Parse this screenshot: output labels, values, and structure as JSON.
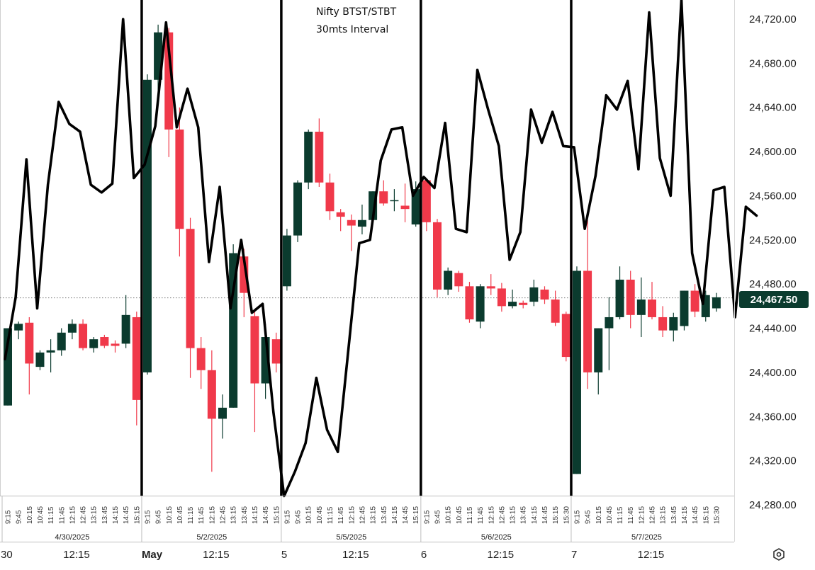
{
  "chart_title": [
    "Nifty BTST/STBT",
    "30mts Interval"
  ],
  "current_price_label": "24,467.50",
  "colors": {
    "up": "#0b3b2e",
    "down": "#f0394a",
    "line": "#000000",
    "dotted": "#787878"
  },
  "chart_data": {
    "type": "candlestick",
    "title": "Nifty BTST/STBT 30mts Interval",
    "ylim": [
      24270,
      24745
    ],
    "y_ticks": [
      "24,280.00",
      "24,320.00",
      "24,360.00",
      "24,400.00",
      "24,440.00",
      "24,480.00",
      "24,520.00",
      "24,560.00",
      "24,600.00",
      "24,640.00",
      "24,680.00",
      "24,720.00"
    ],
    "y_tick_values": [
      24280,
      24320,
      24360,
      24400,
      24440,
      24480,
      24520,
      24560,
      24600,
      24640,
      24680,
      24720
    ],
    "last_price": 24467.5,
    "session_times": [
      "9:15",
      "9:45",
      "10:15",
      "10:45",
      "11:15",
      "11:45",
      "12:15",
      "12:45",
      "13:15",
      "13:45",
      "14:15",
      "14:45",
      "15:15",
      "15:30"
    ],
    "sessions": [
      {
        "date_label": "4/30/2025",
        "bottom_label": "30",
        "time_label": "12:15",
        "ohlc": [
          [
            24370,
            24440,
            24370,
            24440
          ],
          [
            24438,
            24446,
            24430,
            24444
          ],
          [
            24445,
            24450,
            24380,
            24408
          ],
          [
            24405,
            24420,
            24402,
            24418
          ],
          [
            24418,
            24430,
            24400,
            24420
          ],
          [
            24420,
            24440,
            24415,
            24436
          ],
          [
            24436,
            24448,
            24430,
            24444
          ],
          [
            24444,
            24448,
            24420,
            24422
          ],
          [
            24422,
            24432,
            24418,
            24430
          ],
          [
            24432,
            24434,
            24422,
            24424
          ],
          [
            24426,
            24429,
            24418,
            24424
          ],
          [
            24426,
            24470,
            24422,
            24452
          ],
          [
            24450,
            24455,
            24352,
            24375
          ]
        ]
      },
      {
        "date_label": "5/2/2025",
        "bottom_label": "May",
        "time_label": "12:15",
        "ohlc": [
          [
            24400,
            24670,
            24398,
            24665
          ],
          [
            24665,
            24715,
            24655,
            24708
          ],
          [
            24708,
            24712,
            24595,
            24620
          ],
          [
            24620,
            24640,
            24505,
            24530
          ],
          [
            24530,
            24540,
            24395,
            24422
          ],
          [
            24422,
            24432,
            24385,
            24402
          ],
          [
            24402,
            24420,
            24310,
            24358
          ],
          [
            24358,
            24380,
            24340,
            24368
          ],
          [
            24368,
            24516,
            24368,
            24508
          ],
          [
            24505,
            24512,
            24450,
            24472
          ],
          [
            24451,
            24456,
            24346,
            24390
          ],
          [
            24390,
            24444,
            24376,
            24432
          ],
          [
            24430,
            24436,
            24400,
            24408
          ]
        ]
      },
      {
        "date_label": "5/5/2025",
        "bottom_label": "5",
        "time_label": "12:15",
        "ohlc": [
          [
            24478,
            24530,
            24474,
            24524
          ],
          [
            24524,
            24574,
            24518,
            24572
          ],
          [
            24572,
            24620,
            24566,
            24618
          ],
          [
            24618,
            24630,
            24568,
            24572
          ],
          [
            24572,
            24580,
            24538,
            24546
          ],
          [
            24545,
            24548,
            24528,
            24541
          ],
          [
            24538,
            24543,
            24510,
            24533
          ],
          [
            24532,
            24552,
            24525,
            24538
          ],
          [
            24538,
            24564,
            24534,
            24564
          ],
          [
            24564,
            24574,
            24551,
            24553
          ],
          [
            24556,
            24566,
            24546,
            24556
          ],
          [
            24551,
            24571,
            24536,
            24548
          ],
          [
            24534,
            24573,
            24532,
            24566
          ]
        ]
      },
      {
        "date_label": "5/6/2025",
        "bottom_label": "6",
        "time_label": "12:15",
        "ohlc": [
          [
            24574,
            24576,
            24528,
            24536
          ],
          [
            24536,
            24539,
            24468,
            24475
          ],
          [
            24475,
            24495,
            24470,
            24492
          ],
          [
            24490,
            24492,
            24473,
            24478
          ],
          [
            24478,
            24482,
            24445,
            24448
          ],
          [
            24446,
            24480,
            24440,
            24478
          ],
          [
            24478,
            24489,
            24470,
            24476
          ],
          [
            24476,
            24481,
            24455,
            24460
          ],
          [
            24460,
            24475,
            24458,
            24464
          ],
          [
            24463,
            24465,
            24458,
            24461
          ],
          [
            24464,
            24484,
            24460,
            24477
          ],
          [
            24475,
            24478,
            24462,
            24466
          ],
          [
            24466,
            24474,
            24442,
            24445
          ],
          [
            24453,
            24455,
            24410,
            24414
          ]
        ]
      },
      {
        "date_label": "5/7/2025",
        "bottom_label": "7",
        "time_label": "12:15",
        "ohlc": [
          [
            24308,
            24496,
            24308,
            24492
          ],
          [
            24492,
            24538,
            24385,
            24400
          ],
          [
            24400,
            24440,
            24380,
            24440
          ],
          [
            24440,
            24468,
            24402,
            24450
          ],
          [
            24450,
            24496,
            24448,
            24484
          ],
          [
            24484,
            24492,
            24440,
            24452
          ],
          [
            24452,
            24486,
            24432,
            24466
          ],
          [
            24466,
            24482,
            24448,
            24450
          ],
          [
            24450,
            24460,
            24432,
            24438
          ],
          [
            24438,
            24454,
            24428,
            24450
          ],
          [
            24442,
            24474,
            24438,
            24474
          ],
          [
            24474,
            24480,
            24450,
            24455
          ],
          [
            24450,
            24474,
            24446,
            24470
          ],
          [
            24458,
            24472,
            24455,
            24468
          ]
        ]
      }
    ],
    "overlay_series": {
      "name": "",
      "values": [
        24412,
        24468,
        24593,
        24458,
        24570,
        24645,
        24625,
        24618,
        24570,
        24563,
        24571,
        24720,
        24576,
        24588,
        24623,
        24717,
        24622,
        24657,
        24622,
        24500,
        24568,
        24458,
        24520,
        24454,
        24462,
        24364,
        24288,
        24310,
        24336,
        24395,
        24348,
        24328,
        24422,
        24517,
        24520,
        24592,
        24620,
        24622,
        24560,
        24577,
        24567,
        24626,
        24530,
        24527,
        24674,
        24638,
        24605,
        24502,
        24527,
        24638,
        24608,
        24636,
        24605,
        24604,
        24530,
        24578,
        24651,
        24638,
        24664,
        24584,
        24726,
        24594,
        24560,
        24738,
        24508,
        24462,
        24565,
        24568,
        24450,
        24550,
        24542
      ]
    },
    "session_dividers": 5
  }
}
